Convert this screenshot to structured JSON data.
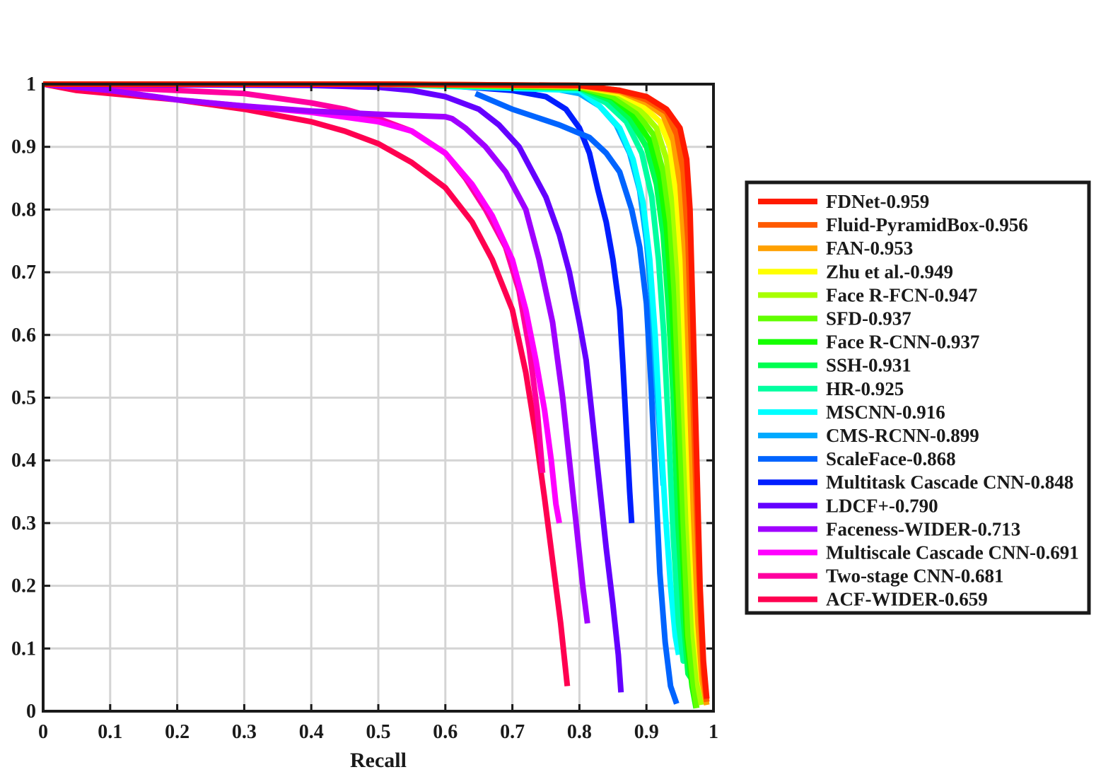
{
  "chart_data": {
    "type": "line",
    "title": "",
    "xlabel": "Recall",
    "ylabel": "",
    "xlim": [
      0,
      1
    ],
    "ylim": [
      0,
      1
    ],
    "xticks": [
      "0",
      "0.1",
      "0.2",
      "0.3",
      "0.4",
      "0.5",
      "0.6",
      "0.7",
      "0.8",
      "0.9",
      "1"
    ],
    "yticks": [
      "0",
      "0.1",
      "0.2",
      "0.3",
      "0.4",
      "0.5",
      "0.6",
      "0.7",
      "0.8",
      "0.9",
      "1"
    ],
    "grid": true,
    "legend_position": "right",
    "series": [
      {
        "name": "FDNet-0.959",
        "color": "#ff1a00",
        "points": [
          [
            0,
            1
          ],
          [
            0.5,
            1
          ],
          [
            0.8,
            0.998
          ],
          [
            0.86,
            0.99
          ],
          [
            0.9,
            0.98
          ],
          [
            0.93,
            0.96
          ],
          [
            0.95,
            0.93
          ],
          [
            0.96,
            0.88
          ],
          [
            0.965,
            0.8
          ],
          [
            0.97,
            0.6
          ],
          [
            0.975,
            0.4
          ],
          [
            0.98,
            0.2
          ],
          [
            0.985,
            0.08
          ],
          [
            0.99,
            0.02
          ]
        ]
      },
      {
        "name": "Fluid-PyramidBox-0.956",
        "color": "#ff5a00",
        "points": [
          [
            0,
            1
          ],
          [
            0.5,
            1
          ],
          [
            0.8,
            0.998
          ],
          [
            0.86,
            0.99
          ],
          [
            0.9,
            0.975
          ],
          [
            0.93,
            0.955
          ],
          [
            0.945,
            0.92
          ],
          [
            0.955,
            0.86
          ],
          [
            0.962,
            0.75
          ],
          [
            0.968,
            0.55
          ],
          [
            0.974,
            0.35
          ],
          [
            0.98,
            0.17
          ],
          [
            0.985,
            0.06
          ],
          [
            0.99,
            0.015
          ]
        ]
      },
      {
        "name": "FAN-0.953",
        "color": "#ffa000",
        "points": [
          [
            0,
            1
          ],
          [
            0.5,
            1
          ],
          [
            0.8,
            0.997
          ],
          [
            0.86,
            0.988
          ],
          [
            0.9,
            0.97
          ],
          [
            0.925,
            0.95
          ],
          [
            0.94,
            0.91
          ],
          [
            0.95,
            0.84
          ],
          [
            0.958,
            0.72
          ],
          [
            0.964,
            0.52
          ],
          [
            0.97,
            0.32
          ],
          [
            0.977,
            0.14
          ],
          [
            0.983,
            0.05
          ],
          [
            0.99,
            0.01
          ]
        ]
      },
      {
        "name": "Zhu et al.-0.949",
        "color": "#ffff00",
        "points": [
          [
            0,
            1
          ],
          [
            0.5,
            1
          ],
          [
            0.8,
            0.997
          ],
          [
            0.86,
            0.985
          ],
          [
            0.895,
            0.965
          ],
          [
            0.92,
            0.94
          ],
          [
            0.935,
            0.9
          ],
          [
            0.945,
            0.82
          ],
          [
            0.953,
            0.7
          ],
          [
            0.96,
            0.5
          ],
          [
            0.967,
            0.3
          ],
          [
            0.975,
            0.13
          ],
          [
            0.982,
            0.05
          ],
          [
            0.99,
            0.01
          ]
        ]
      },
      {
        "name": "Face R-FCN-0.947",
        "color": "#a8ff00",
        "points": [
          [
            0,
            1
          ],
          [
            0.5,
            1
          ],
          [
            0.8,
            0.996
          ],
          [
            0.855,
            0.985
          ],
          [
            0.89,
            0.96
          ],
          [
            0.915,
            0.93
          ],
          [
            0.93,
            0.88
          ],
          [
            0.94,
            0.8
          ],
          [
            0.948,
            0.68
          ],
          [
            0.955,
            0.5
          ],
          [
            0.962,
            0.3
          ],
          [
            0.97,
            0.12
          ],
          [
            0.977,
            0.04
          ],
          [
            0.982,
            0.01
          ]
        ]
      },
      {
        "name": "SFD-0.937",
        "color": "#60ff00",
        "points": [
          [
            0,
            1
          ],
          [
            0.5,
            1
          ],
          [
            0.8,
            0.995
          ],
          [
            0.85,
            0.98
          ],
          [
            0.885,
            0.955
          ],
          [
            0.91,
            0.92
          ],
          [
            0.925,
            0.86
          ],
          [
            0.935,
            0.78
          ],
          [
            0.942,
            0.66
          ],
          [
            0.948,
            0.5
          ],
          [
            0.955,
            0.3
          ],
          [
            0.962,
            0.12
          ],
          [
            0.97,
            0.04
          ],
          [
            0.975,
            0.005
          ]
        ]
      },
      {
        "name": "Face R-CNN-0.937",
        "color": "#14ff00",
        "points": [
          [
            0,
            1
          ],
          [
            0.5,
            1
          ],
          [
            0.8,
            0.995
          ],
          [
            0.85,
            0.978
          ],
          [
            0.88,
            0.95
          ],
          [
            0.905,
            0.91
          ],
          [
            0.92,
            0.85
          ],
          [
            0.93,
            0.77
          ],
          [
            0.938,
            0.65
          ],
          [
            0.945,
            0.5
          ],
          [
            0.952,
            0.3
          ],
          [
            0.96,
            0.12
          ],
          [
            0.968,
            0.04
          ],
          [
            0.974,
            0.005
          ]
        ]
      },
      {
        "name": "SSH-0.931",
        "color": "#00ff50",
        "points": [
          [
            0,
            1
          ],
          [
            0.5,
            1
          ],
          [
            0.8,
            0.994
          ],
          [
            0.845,
            0.975
          ],
          [
            0.875,
            0.945
          ],
          [
            0.9,
            0.9
          ],
          [
            0.915,
            0.84
          ],
          [
            0.925,
            0.76
          ],
          [
            0.933,
            0.64
          ],
          [
            0.94,
            0.5
          ],
          [
            0.947,
            0.3
          ],
          [
            0.955,
            0.15
          ],
          [
            0.962,
            0.06
          ],
          [
            0.968,
            0.05
          ]
        ]
      },
      {
        "name": "HR-0.925",
        "color": "#00ffa0",
        "points": [
          [
            0,
            1
          ],
          [
            0.5,
            1
          ],
          [
            0.8,
            0.993
          ],
          [
            0.84,
            0.97
          ],
          [
            0.87,
            0.94
          ],
          [
            0.893,
            0.89
          ],
          [
            0.908,
            0.82
          ],
          [
            0.918,
            0.72
          ],
          [
            0.926,
            0.6
          ],
          [
            0.933,
            0.45
          ],
          [
            0.94,
            0.28
          ],
          [
            0.948,
            0.14
          ],
          [
            0.955,
            0.08
          ],
          [
            0.96,
            0.09
          ]
        ]
      },
      {
        "name": "MSCNN-0.916",
        "color": "#00ffff",
        "points": [
          [
            0,
            1
          ],
          [
            0.5,
            1
          ],
          [
            0.8,
            0.99
          ],
          [
            0.83,
            0.965
          ],
          [
            0.86,
            0.93
          ],
          [
            0.88,
            0.88
          ],
          [
            0.895,
            0.81
          ],
          [
            0.905,
            0.72
          ],
          [
            0.913,
            0.6
          ],
          [
            0.92,
            0.46
          ],
          [
            0.928,
            0.32
          ],
          [
            0.936,
            0.2
          ],
          [
            0.943,
            0.12
          ],
          [
            0.948,
            0.09
          ]
        ]
      },
      {
        "name": "CMS-RCNN-0.899",
        "color": "#00aaff",
        "points": [
          [
            0,
            1
          ],
          [
            0.5,
            1
          ],
          [
            0.75,
            0.995
          ],
          [
            0.8,
            0.985
          ],
          [
            0.83,
            0.965
          ],
          [
            0.855,
            0.935
          ],
          [
            0.875,
            0.89
          ],
          [
            0.89,
            0.83
          ],
          [
            0.9,
            0.75
          ],
          [
            0.908,
            0.65
          ],
          [
            0.915,
            0.52
          ],
          [
            0.92,
            0.44
          ],
          [
            0.925,
            0.36
          ]
        ]
      },
      {
        "name": "ScaleFace-0.868",
        "color": "#0064ff",
        "points": [
          [
            0.645,
            0.985
          ],
          [
            0.7,
            0.96
          ],
          [
            0.77,
            0.935
          ],
          [
            0.815,
            0.915
          ],
          [
            0.84,
            0.89
          ],
          [
            0.86,
            0.86
          ],
          [
            0.878,
            0.8
          ],
          [
            0.89,
            0.74
          ],
          [
            0.9,
            0.65
          ],
          [
            0.907,
            0.52
          ],
          [
            0.913,
            0.38
          ],
          [
            0.92,
            0.22
          ],
          [
            0.928,
            0.11
          ],
          [
            0.936,
            0.04
          ],
          [
            0.945,
            0.012
          ]
        ]
      },
      {
        "name": "Multitask Cascade CNN-0.848",
        "color": "#001eff",
        "points": [
          [
            0,
            1
          ],
          [
            0.5,
            1
          ],
          [
            0.6,
            0.998
          ],
          [
            0.7,
            0.99
          ],
          [
            0.75,
            0.98
          ],
          [
            0.78,
            0.96
          ],
          [
            0.8,
            0.93
          ],
          [
            0.815,
            0.89
          ],
          [
            0.828,
            0.83
          ],
          [
            0.84,
            0.78
          ],
          [
            0.85,
            0.72
          ],
          [
            0.86,
            0.64
          ],
          [
            0.865,
            0.55
          ],
          [
            0.87,
            0.45
          ],
          [
            0.875,
            0.35
          ],
          [
            0.878,
            0.3
          ]
        ]
      },
      {
        "name": "LDCF+-0.790",
        "color": "#6400ff",
        "points": [
          [
            0,
            1
          ],
          [
            0.4,
            0.998
          ],
          [
            0.5,
            0.995
          ],
          [
            0.55,
            0.99
          ],
          [
            0.6,
            0.98
          ],
          [
            0.65,
            0.96
          ],
          [
            0.68,
            0.935
          ],
          [
            0.71,
            0.9
          ],
          [
            0.73,
            0.86
          ],
          [
            0.75,
            0.82
          ],
          [
            0.77,
            0.76
          ],
          [
            0.785,
            0.7
          ],
          [
            0.8,
            0.62
          ],
          [
            0.81,
            0.56
          ],
          [
            0.82,
            0.46
          ],
          [
            0.83,
            0.36
          ],
          [
            0.84,
            0.26
          ],
          [
            0.85,
            0.17
          ],
          [
            0.858,
            0.09
          ],
          [
            0.862,
            0.03
          ]
        ]
      },
      {
        "name": "Faceness-WIDER-0.713",
        "color": "#a000ff",
        "points": [
          [
            0,
            1
          ],
          [
            0.1,
            0.99
          ],
          [
            0.2,
            0.975
          ],
          [
            0.3,
            0.965
          ],
          [
            0.4,
            0.957
          ],
          [
            0.5,
            0.952
          ],
          [
            0.6,
            0.948
          ],
          [
            0.61,
            0.945
          ],
          [
            0.63,
            0.93
          ],
          [
            0.66,
            0.9
          ],
          [
            0.69,
            0.86
          ],
          [
            0.72,
            0.8
          ],
          [
            0.74,
            0.72
          ],
          [
            0.76,
            0.62
          ],
          [
            0.775,
            0.5
          ],
          [
            0.785,
            0.4
          ],
          [
            0.795,
            0.3
          ],
          [
            0.805,
            0.2
          ],
          [
            0.812,
            0.14
          ]
        ]
      },
      {
        "name": "Multiscale Cascade CNN-0.691",
        "color": "#ff00ff",
        "points": [
          [
            0,
            1
          ],
          [
            0.1,
            0.99
          ],
          [
            0.2,
            0.975
          ],
          [
            0.3,
            0.965
          ],
          [
            0.4,
            0.955
          ],
          [
            0.5,
            0.94
          ],
          [
            0.55,
            0.925
          ],
          [
            0.6,
            0.89
          ],
          [
            0.64,
            0.84
          ],
          [
            0.67,
            0.79
          ],
          [
            0.7,
            0.72
          ],
          [
            0.72,
            0.64
          ],
          [
            0.735,
            0.56
          ],
          [
            0.748,
            0.48
          ],
          [
            0.758,
            0.4
          ],
          [
            0.765,
            0.33
          ],
          [
            0.77,
            0.3
          ]
        ]
      },
      {
        "name": "Two-stage CNN-0.681",
        "color": "#ff00a0",
        "points": [
          [
            0,
            1
          ],
          [
            0.1,
            0.995
          ],
          [
            0.2,
            0.99
          ],
          [
            0.3,
            0.985
          ],
          [
            0.4,
            0.97
          ],
          [
            0.45,
            0.96
          ],
          [
            0.5,
            0.945
          ],
          [
            0.55,
            0.925
          ],
          [
            0.6,
            0.89
          ],
          [
            0.63,
            0.85
          ],
          [
            0.66,
            0.8
          ],
          [
            0.69,
            0.74
          ],
          [
            0.71,
            0.67
          ],
          [
            0.725,
            0.58
          ],
          [
            0.737,
            0.48
          ],
          [
            0.745,
            0.38
          ]
        ]
      },
      {
        "name": "ACF-WIDER-0.659",
        "color": "#ff0050",
        "points": [
          [
            0,
            1
          ],
          [
            0.05,
            0.99
          ],
          [
            0.1,
            0.985
          ],
          [
            0.2,
            0.975
          ],
          [
            0.3,
            0.96
          ],
          [
            0.4,
            0.94
          ],
          [
            0.45,
            0.925
          ],
          [
            0.5,
            0.905
          ],
          [
            0.55,
            0.875
          ],
          [
            0.6,
            0.835
          ],
          [
            0.64,
            0.78
          ],
          [
            0.67,
            0.72
          ],
          [
            0.7,
            0.64
          ],
          [
            0.72,
            0.54
          ],
          [
            0.735,
            0.44
          ],
          [
            0.748,
            0.34
          ],
          [
            0.76,
            0.24
          ],
          [
            0.772,
            0.14
          ],
          [
            0.782,
            0.04
          ]
        ]
      }
    ]
  }
}
